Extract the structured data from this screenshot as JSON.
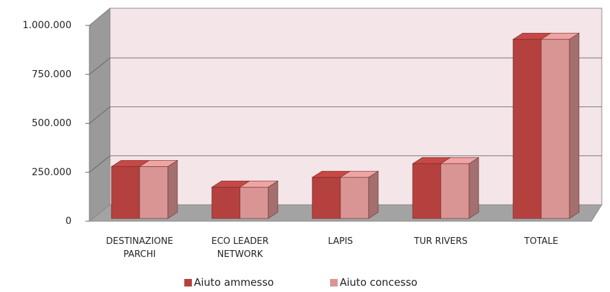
{
  "chart_data": {
    "type": "bar3d",
    "categories": [
      "DESTINAZIONE PARCHI",
      "ECO LEADER NETWORK",
      "LAPIS",
      "TUR RIVERS",
      "TOTALE"
    ],
    "series": [
      {
        "name": "Aiuto ammesso",
        "color": "#b5413f",
        "values": [
          265000,
          160000,
          210000,
          280000,
          915000
        ]
      },
      {
        "name": "Aiuto concesso",
        "color": "#d99594",
        "values": [
          265000,
          160000,
          210000,
          280000,
          915000
        ]
      }
    ],
    "ylim": [
      0,
      1000000
    ],
    "yticks": [
      0,
      {
        "value": 250000,
        "label": "250.000"
      },
      {
        "value": 500000,
        "label": "500.000"
      },
      {
        "value": 750000,
        "label": "750.000"
      },
      {
        "value": 1000000,
        "label": "1.000.000"
      }
    ],
    "grid": true
  }
}
